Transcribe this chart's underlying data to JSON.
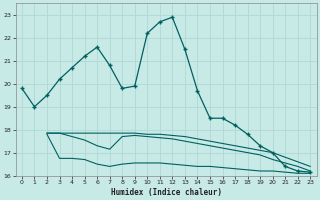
{
  "background_color": "#c8eae6",
  "grid_color": "#b0d8d4",
  "line_color": "#006060",
  "xlabel": "Humidex (Indice chaleur)",
  "ylim": [
    16,
    23.5
  ],
  "xlim": [
    -0.5,
    23.5
  ],
  "yticks": [
    16,
    17,
    18,
    19,
    20,
    21,
    22,
    23
  ],
  "xticks": [
    0,
    1,
    2,
    3,
    4,
    5,
    6,
    7,
    8,
    9,
    10,
    11,
    12,
    13,
    14,
    15,
    16,
    17,
    18,
    19,
    20,
    21,
    22,
    23
  ],
  "series1_x": [
    0,
    1,
    2,
    3,
    4,
    5,
    6,
    7,
    8,
    9,
    10,
    11,
    12,
    13,
    14,
    15,
    16,
    17,
    18,
    19,
    20,
    21,
    22,
    23
  ],
  "series1_y": [
    19.8,
    19.0,
    19.5,
    20.2,
    20.7,
    21.2,
    21.6,
    20.8,
    19.8,
    19.9,
    22.2,
    22.7,
    22.9,
    21.5,
    19.7,
    18.5,
    18.5,
    18.2,
    17.8,
    17.3,
    17.0,
    16.4,
    16.2,
    16.15
  ],
  "series2_x": [
    2,
    3,
    4,
    5,
    6,
    7,
    8,
    9,
    10,
    11,
    12,
    13,
    14,
    15,
    16,
    17,
    18,
    19,
    20,
    21,
    22,
    23
  ],
  "series2_y": [
    17.85,
    17.85,
    17.85,
    17.85,
    17.85,
    17.85,
    17.85,
    17.85,
    17.8,
    17.8,
    17.75,
    17.7,
    17.6,
    17.5,
    17.4,
    17.3,
    17.2,
    17.1,
    17.0,
    16.8,
    16.6,
    16.4
  ],
  "series3_x": [
    2,
    3,
    4,
    5,
    6,
    7,
    8,
    9,
    10,
    11,
    12,
    13,
    14,
    15,
    16,
    17,
    18,
    19,
    20,
    21,
    22,
    23
  ],
  "series3_y": [
    17.85,
    17.85,
    17.7,
    17.55,
    17.3,
    17.15,
    17.7,
    17.75,
    17.7,
    17.65,
    17.6,
    17.5,
    17.4,
    17.3,
    17.2,
    17.1,
    17.0,
    16.9,
    16.7,
    16.55,
    16.4,
    16.2
  ],
  "series4_x": [
    2,
    3,
    4,
    5,
    6,
    7,
    8,
    9,
    10,
    11,
    12,
    13,
    14,
    15,
    16,
    17,
    18,
    19,
    20,
    21,
    22,
    23
  ],
  "series4_y": [
    17.8,
    16.75,
    16.75,
    16.7,
    16.5,
    16.4,
    16.5,
    16.55,
    16.55,
    16.55,
    16.5,
    16.45,
    16.4,
    16.4,
    16.35,
    16.3,
    16.25,
    16.2,
    16.2,
    16.15,
    16.1,
    16.1
  ]
}
